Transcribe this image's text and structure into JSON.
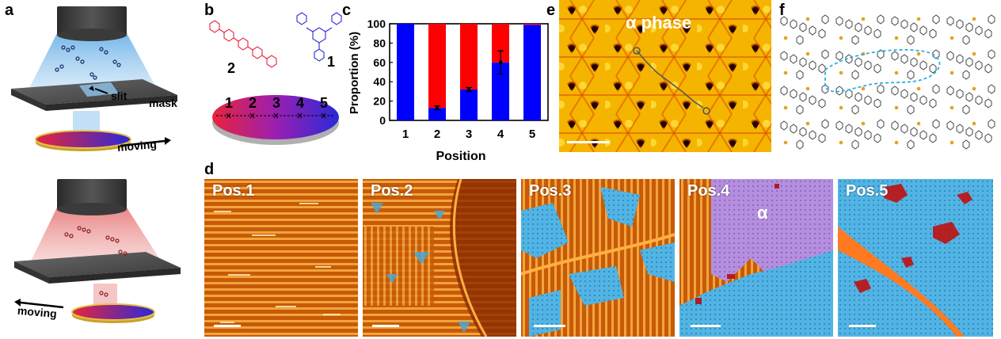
{
  "panels": {
    "a": "a",
    "b": "b",
    "c": "c",
    "d": "d",
    "e": "e",
    "f": "f"
  },
  "panel_a": {
    "slit_label": "slit",
    "mask_label": "mask",
    "moving_label_top": "moving",
    "moving_label_bottom": "moving"
  },
  "panel_b": {
    "molecule_2": "2",
    "molecule_1": "1",
    "positions": [
      "1",
      "2",
      "3",
      "4",
      "5"
    ],
    "color_red": "#e8243c",
    "color_blue": "#2a2ad8"
  },
  "panel_e": {
    "title": "α phase"
  },
  "panel_d": {
    "labels": [
      "Pos.1",
      "Pos.2",
      "Pos.3",
      "Pos.4",
      "Pos.5"
    ],
    "alpha_label": "α"
  },
  "chart_data": {
    "type": "bar",
    "categories": [
      "1",
      "2",
      "3",
      "4",
      "5"
    ],
    "series": [
      {
        "values": [
          100,
          13,
          32,
          60,
          99
        ],
        "color": "#0000ff"
      },
      {
        "values": [
          0,
          87,
          68,
          40,
          1
        ],
        "color": "#ff0000"
      }
    ],
    "stacked": true,
    "errors": [
      0,
      2,
      2,
      12,
      0
    ],
    "xlabel": "Position",
    "ylabel": "Proportion (%)",
    "ylim": [
      0,
      100
    ],
    "yticks": [
      "0",
      "20",
      "40",
      "60",
      "80",
      "100"
    ]
  }
}
